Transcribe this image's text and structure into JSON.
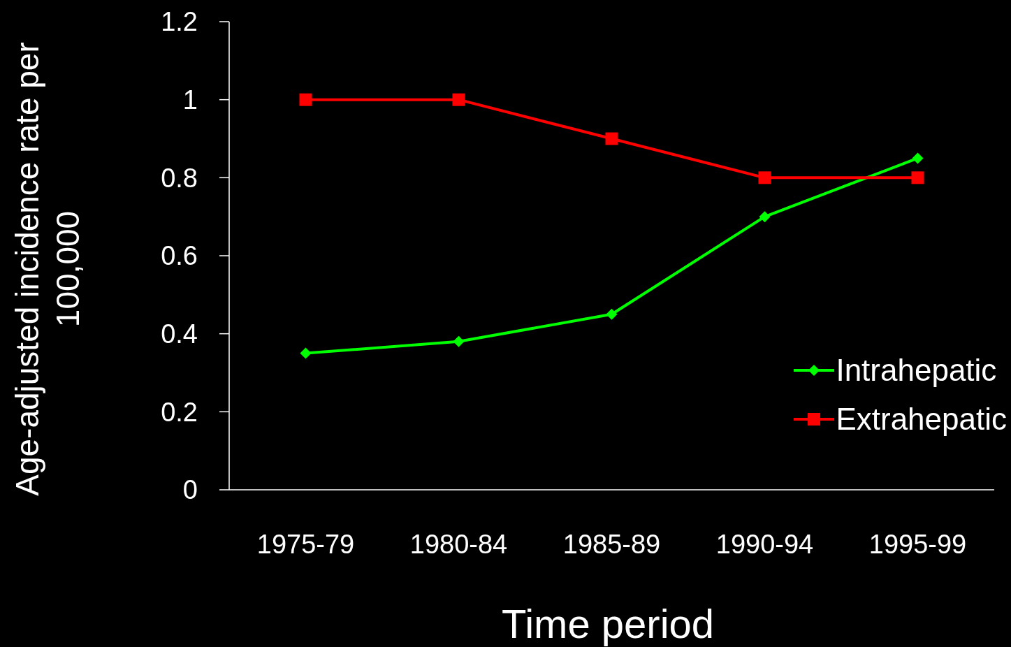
{
  "chart_data": {
    "type": "line",
    "xlabel": "Time period",
    "ylabel": "Age-adjusted incidence rate per 100,000",
    "categories": [
      "1975-79",
      "1980-84",
      "1985-89",
      "1990-94",
      "1995-99"
    ],
    "series": [
      {
        "name": "Intrahepatic",
        "color": "#00ff00",
        "marker": "diamond",
        "values": [
          0.35,
          0.38,
          0.45,
          0.7,
          0.85
        ]
      },
      {
        "name": "Extrahepatic",
        "color": "#ff0000",
        "marker": "square",
        "values": [
          1.0,
          1.0,
          0.9,
          0.8,
          0.8
        ]
      }
    ],
    "ylim": [
      0,
      1.2
    ],
    "yticks": [
      0,
      0.2,
      0.4,
      0.6,
      0.8,
      1,
      1.2
    ],
    "grid": false,
    "legend": "right"
  }
}
